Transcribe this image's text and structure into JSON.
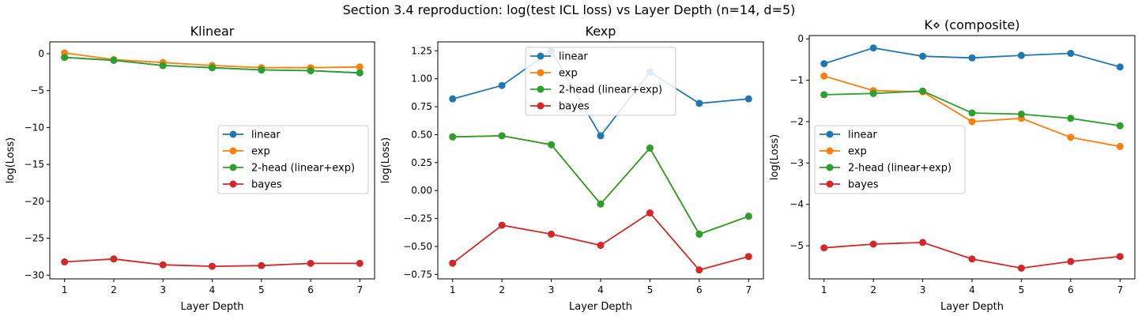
{
  "figure": {
    "suptitle": "Section 3.4 reproduction: log(test ICL loss) vs Layer Depth (n=14, d=5)"
  },
  "colors": {
    "linear": "#1f77b4",
    "exp": "#ff7f0e",
    "2-head": "#2ca02c",
    "bayes": "#d62728"
  },
  "chart_data": [
    {
      "type": "line",
      "title": "Klinear",
      "xlabel": "Layer Depth",
      "ylabel": "log(Loss)",
      "x": [
        1,
        2,
        3,
        4,
        5,
        6,
        7
      ],
      "xticks": [
        1,
        2,
        3,
        4,
        5,
        6,
        7
      ],
      "yticks": [
        0,
        -5,
        -10,
        -15,
        -20,
        -25,
        -30
      ],
      "ytick_labels": [
        "0",
        "−5",
        "−10",
        "−15",
        "−20",
        "−25",
        "−30"
      ],
      "ylim": [
        -30.5,
        1.6
      ],
      "legend_position": "center-right",
      "series": [
        {
          "name": "linear",
          "color": "#1f77b4",
          "values": [
            -0.5,
            -0.9,
            -1.6,
            -1.9,
            -2.2,
            -2.3,
            -2.6
          ]
        },
        {
          "name": "exp",
          "color": "#ff7f0e",
          "values": [
            0.1,
            -0.8,
            -1.2,
            -1.6,
            -1.9,
            -1.9,
            -1.8
          ]
        },
        {
          "name": "2-head (linear+exp)",
          "color": "#2ca02c",
          "values": [
            -0.5,
            -0.9,
            -1.6,
            -1.9,
            -2.2,
            -2.3,
            -2.6
          ]
        },
        {
          "name": "bayes",
          "color": "#d62728",
          "values": [
            -28.2,
            -27.8,
            -28.6,
            -28.8,
            -28.7,
            -28.4,
            -28.4
          ]
        }
      ]
    },
    {
      "type": "line",
      "title": "Kexp",
      "xlabel": "Layer Depth",
      "ylabel": "log(Loss)",
      "x": [
        1,
        2,
        3,
        4,
        5,
        6,
        7
      ],
      "xticks": [
        1,
        2,
        3,
        4,
        5,
        6,
        7
      ],
      "yticks": [
        1.25,
        1.0,
        0.75,
        0.5,
        0.25,
        0.0,
        -0.25,
        -0.5,
        -0.75
      ],
      "ytick_labels": [
        "1.25",
        "1.00",
        "0.75",
        "0.50",
        "0.25",
        "0.00",
        "−0.25",
        "−0.50",
        "−0.75"
      ],
      "ylim": [
        -0.79,
        1.33
      ],
      "legend_position": "upper-center",
      "series": [
        {
          "name": "linear",
          "color": "#1f77b4",
          "values": [
            0.82,
            0.94,
            1.25,
            0.49,
            1.06,
            0.78,
            0.82
          ]
        },
        {
          "name": "exp",
          "color": "#ff7f0e",
          "values": [
            0.48,
            0.49,
            0.41,
            -0.12,
            0.38,
            -0.39,
            -0.23
          ]
        },
        {
          "name": "2-head (linear+exp)",
          "color": "#2ca02c",
          "values": [
            0.48,
            0.49,
            0.41,
            -0.12,
            0.38,
            -0.39,
            -0.23
          ]
        },
        {
          "name": "bayes",
          "color": "#d62728",
          "values": [
            -0.65,
            -0.31,
            -0.39,
            -0.49,
            -0.2,
            -0.71,
            -0.59
          ]
        }
      ]
    },
    {
      "type": "line",
      "title": "K⋄ (composite)",
      "xlabel": "Layer Depth",
      "ylabel": "log(Loss)",
      "x": [
        1,
        2,
        3,
        4,
        5,
        6,
        7
      ],
      "xticks": [
        1,
        2,
        3,
        4,
        5,
        6,
        7
      ],
      "yticks": [
        0,
        -1,
        -2,
        -3,
        -4,
        -5
      ],
      "ytick_labels": [
        "0",
        "−1",
        "−2",
        "−3",
        "−4",
        "−5"
      ],
      "ylim": [
        -5.8,
        0.08
      ],
      "legend_position": "center-left",
      "series": [
        {
          "name": "linear",
          "color": "#1f77b4",
          "values": [
            -0.6,
            -0.22,
            -0.42,
            -0.46,
            -0.4,
            -0.35,
            -0.68
          ]
        },
        {
          "name": "exp",
          "color": "#ff7f0e",
          "values": [
            -0.9,
            -1.25,
            -1.28,
            -2.0,
            -1.92,
            -2.38,
            -2.6
          ]
        },
        {
          "name": "2-head (linear+exp)",
          "color": "#2ca02c",
          "values": [
            -1.35,
            -1.32,
            -1.26,
            -1.79,
            -1.82,
            -1.92,
            -2.1
          ]
        },
        {
          "name": "bayes",
          "color": "#d62728",
          "values": [
            -5.05,
            -4.96,
            -4.92,
            -5.32,
            -5.54,
            -5.38,
            -5.26
          ]
        }
      ]
    }
  ]
}
